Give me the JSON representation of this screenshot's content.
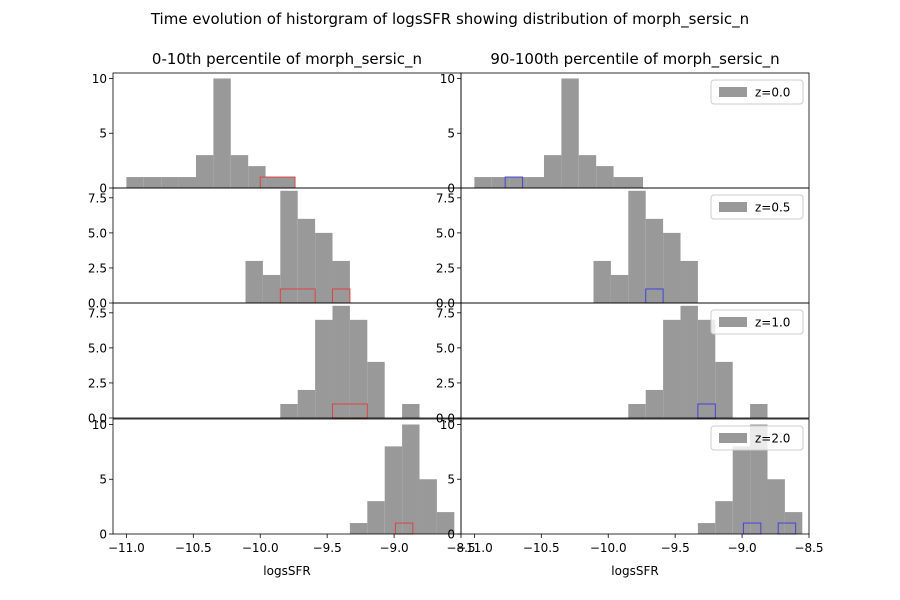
{
  "figure": {
    "suptitle": "Time evolution of historgram of logsSFR showing distribution of morph_sersic_n",
    "column_titles": [
      "0-10th percentile of morph_sersic_n",
      "90-100th percentile of morph_sersic_n"
    ],
    "xlabel": "logsSFR"
  },
  "colors": {
    "all": "#999999",
    "low_subset": "#dd4444",
    "high_subset": "#4444dd",
    "axes": "#000000"
  },
  "chart_data": {
    "type": "bar",
    "histtype": "stepfilled grey histogram of all galaxies with step-outline histogram of percentile subset",
    "bin_width": 0.13,
    "xlim": [
      -11.1,
      -8.5
    ],
    "xticks": [
      -11.0,
      -10.5,
      -10.0,
      -9.5,
      -9.0,
      -8.5
    ],
    "xtick_labels": [
      "−11.0",
      "−10.5",
      "−10.0",
      "−9.5",
      "−9.0",
      "−8.5"
    ],
    "rows": [
      {
        "legend": "z=0.0",
        "ylim": [
          0,
          10.5
        ],
        "yticks": [
          0,
          5,
          10
        ],
        "ytick_labels": [
          "0",
          "5",
          "10"
        ],
        "all_hist": [
          {
            "x0": -11.0,
            "x1": -10.87,
            "count": 1
          },
          {
            "x0": -10.87,
            "x1": -10.74,
            "count": 1
          },
          {
            "x0": -10.74,
            "x1": -10.61,
            "count": 1
          },
          {
            "x0": -10.61,
            "x1": -10.48,
            "count": 1
          },
          {
            "x0": -10.48,
            "x1": -10.35,
            "count": 3
          },
          {
            "x0": -10.35,
            "x1": -10.22,
            "count": 10
          },
          {
            "x0": -10.22,
            "x1": -10.09,
            "count": 3
          },
          {
            "x0": -10.09,
            "x1": -9.96,
            "count": 2
          },
          {
            "x0": -9.96,
            "x1": -9.74,
            "count": 1
          }
        ],
        "panels": [
          {
            "subset": "low",
            "subset_hist": [
              {
                "x0": -10.0,
                "x1": -9.74,
                "count": 1
              }
            ]
          },
          {
            "subset": "high",
            "subset_hist": [
              {
                "x0": -10.77,
                "x1": -10.64,
                "count": 1
              }
            ]
          }
        ]
      },
      {
        "legend": "z=0.5",
        "ylim": [
          0,
          8.2
        ],
        "yticks": [
          0,
          2.5,
          5,
          7.5
        ],
        "ytick_labels": [
          "0.0",
          "2.5",
          "5.0",
          "7.5"
        ],
        "all_hist": [
          {
            "x0": -10.11,
            "x1": -9.98,
            "count": 3
          },
          {
            "x0": -9.98,
            "x1": -9.85,
            "count": 2
          },
          {
            "x0": -9.85,
            "x1": -9.72,
            "count": 8
          },
          {
            "x0": -9.72,
            "x1": -9.59,
            "count": 6
          },
          {
            "x0": -9.59,
            "x1": -9.46,
            "count": 5
          },
          {
            "x0": -9.46,
            "x1": -9.33,
            "count": 3
          }
        ],
        "panels": [
          {
            "subset": "low",
            "subset_hist": [
              {
                "x0": -9.85,
                "x1": -9.59,
                "count": 1
              },
              {
                "x0": -9.46,
                "x1": -9.33,
                "count": 1
              }
            ]
          },
          {
            "subset": "high",
            "subset_hist": [
              {
                "x0": -9.72,
                "x1": -9.59,
                "count": 1
              }
            ]
          }
        ]
      },
      {
        "legend": "z=1.0",
        "ylim": [
          0,
          8.2
        ],
        "yticks": [
          0,
          2.5,
          5,
          7.5
        ],
        "ytick_labels": [
          "0.0",
          "2.5",
          "5.0",
          "7.5"
        ],
        "all_hist": [
          {
            "x0": -9.85,
            "x1": -9.72,
            "count": 1
          },
          {
            "x0": -9.72,
            "x1": -9.59,
            "count": 2
          },
          {
            "x0": -9.59,
            "x1": -9.46,
            "count": 7
          },
          {
            "x0": -9.46,
            "x1": -9.33,
            "count": 8
          },
          {
            "x0": -9.33,
            "x1": -9.2,
            "count": 7
          },
          {
            "x0": -9.2,
            "x1": -9.07,
            "count": 4
          },
          {
            "x0": -8.94,
            "x1": -8.81,
            "count": 1
          }
        ],
        "panels": [
          {
            "subset": "low",
            "subset_hist": [
              {
                "x0": -9.46,
                "x1": -9.2,
                "count": 1
              }
            ]
          },
          {
            "subset": "high",
            "subset_hist": [
              {
                "x0": -9.33,
                "x1": -9.2,
                "count": 1
              }
            ]
          }
        ]
      },
      {
        "legend": "z=2.0",
        "ylim": [
          0,
          10.5
        ],
        "yticks": [
          0,
          5,
          10
        ],
        "ytick_labels": [
          "0",
          "5",
          "10"
        ],
        "all_hist": [
          {
            "x0": -9.33,
            "x1": -9.2,
            "count": 1
          },
          {
            "x0": -9.2,
            "x1": -9.07,
            "count": 3
          },
          {
            "x0": -9.07,
            "x1": -8.94,
            "count": 8
          },
          {
            "x0": -8.94,
            "x1": -8.81,
            "count": 10
          },
          {
            "x0": -8.81,
            "x1": -8.68,
            "count": 5
          },
          {
            "x0": -8.68,
            "x1": -8.55,
            "count": 2
          }
        ],
        "panels": [
          {
            "subset": "low",
            "subset_hist": [
              {
                "x0": -8.99,
                "x1": -8.86,
                "count": 1
              }
            ]
          },
          {
            "subset": "high",
            "subset_hist": [
              {
                "x0": -8.99,
                "x1": -8.86,
                "count": 1
              },
              {
                "x0": -8.73,
                "x1": -8.6,
                "count": 1
              }
            ]
          }
        ]
      }
    ]
  }
}
